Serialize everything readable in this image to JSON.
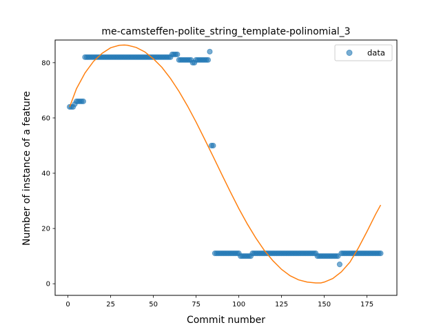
{
  "chart_data": {
    "type": "scatter",
    "title": "me-camsteffen-polite_string_template-polinomial_3",
    "xlabel": "Commit number",
    "ylabel": "Number of instance of a feature",
    "xlim": [
      -7.5,
      192.5
    ],
    "ylim": [
      -4.2,
      88.2
    ],
    "x_ticks": [
      0,
      25,
      50,
      75,
      100,
      125,
      150,
      175
    ],
    "y_ticks": [
      0,
      20,
      40,
      60,
      80
    ],
    "grid": false,
    "legend": {
      "position": "top-right",
      "entries": [
        "data"
      ]
    },
    "series": [
      {
        "name": "data",
        "kind": "scatter",
        "color": "#1f77b4",
        "points": [
          [
            1,
            64
          ],
          [
            2,
            64
          ],
          [
            3,
            64
          ],
          [
            4,
            65
          ],
          [
            5,
            66
          ],
          [
            6,
            66
          ],
          [
            7,
            66
          ],
          [
            8,
            66
          ],
          [
            9,
            66
          ],
          [
            10,
            82
          ],
          [
            11,
            82
          ],
          [
            12,
            82
          ],
          [
            13,
            82
          ],
          [
            14,
            82
          ],
          [
            15,
            82
          ],
          [
            16,
            82
          ],
          [
            17,
            82
          ],
          [
            18,
            82
          ],
          [
            19,
            82
          ],
          [
            20,
            82
          ],
          [
            21,
            82
          ],
          [
            22,
            82
          ],
          [
            23,
            82
          ],
          [
            24,
            82
          ],
          [
            25,
            82
          ],
          [
            26,
            82
          ],
          [
            27,
            82
          ],
          [
            28,
            82
          ],
          [
            29,
            82
          ],
          [
            30,
            82
          ],
          [
            31,
            82
          ],
          [
            32,
            82
          ],
          [
            33,
            82
          ],
          [
            34,
            82
          ],
          [
            35,
            82
          ],
          [
            36,
            82
          ],
          [
            37,
            82
          ],
          [
            38,
            82
          ],
          [
            39,
            82
          ],
          [
            40,
            82
          ],
          [
            41,
            82
          ],
          [
            42,
            82
          ],
          [
            43,
            82
          ],
          [
            44,
            82
          ],
          [
            45,
            82
          ],
          [
            46,
            82
          ],
          [
            47,
            82
          ],
          [
            48,
            82
          ],
          [
            49,
            82
          ],
          [
            50,
            82
          ],
          [
            51,
            82
          ],
          [
            52,
            82
          ],
          [
            53,
            82
          ],
          [
            54,
            82
          ],
          [
            55,
            82
          ],
          [
            56,
            82
          ],
          [
            57,
            82
          ],
          [
            58,
            82
          ],
          [
            59,
            82
          ],
          [
            60,
            82
          ],
          [
            61,
            83
          ],
          [
            62,
            83
          ],
          [
            63,
            83
          ],
          [
            64,
            83
          ],
          [
            65,
            81
          ],
          [
            66,
            81
          ],
          [
            67,
            81
          ],
          [
            68,
            81
          ],
          [
            69,
            81
          ],
          [
            70,
            81
          ],
          [
            71,
            81
          ],
          [
            72,
            81
          ],
          [
            73,
            80
          ],
          [
            74,
            80
          ],
          [
            75,
            81
          ],
          [
            76,
            81
          ],
          [
            77,
            81
          ],
          [
            78,
            81
          ],
          [
            79,
            81
          ],
          [
            80,
            81
          ],
          [
            81,
            81
          ],
          [
            82,
            81
          ],
          [
            83,
            84
          ],
          [
            84,
            50
          ],
          [
            85,
            50
          ],
          [
            86,
            11
          ],
          [
            87,
            11
          ],
          [
            88,
            11
          ],
          [
            89,
            11
          ],
          [
            90,
            11
          ],
          [
            91,
            11
          ],
          [
            92,
            11
          ],
          [
            93,
            11
          ],
          [
            94,
            11
          ],
          [
            95,
            11
          ],
          [
            96,
            11
          ],
          [
            97,
            11
          ],
          [
            98,
            11
          ],
          [
            99,
            11
          ],
          [
            100,
            11
          ],
          [
            101,
            10
          ],
          [
            102,
            10
          ],
          [
            103,
            10
          ],
          [
            104,
            10
          ],
          [
            105,
            10
          ],
          [
            106,
            10
          ],
          [
            107,
            10
          ],
          [
            108,
            11
          ],
          [
            109,
            11
          ],
          [
            110,
            11
          ],
          [
            111,
            11
          ],
          [
            112,
            11
          ],
          [
            113,
            11
          ],
          [
            114,
            11
          ],
          [
            115,
            11
          ],
          [
            116,
            11
          ],
          [
            117,
            11
          ],
          [
            118,
            11
          ],
          [
            119,
            11
          ],
          [
            120,
            11
          ],
          [
            121,
            11
          ],
          [
            122,
            11
          ],
          [
            123,
            11
          ],
          [
            124,
            11
          ],
          [
            125,
            11
          ],
          [
            126,
            11
          ],
          [
            127,
            11
          ],
          [
            128,
            11
          ],
          [
            129,
            11
          ],
          [
            130,
            11
          ],
          [
            131,
            11
          ],
          [
            132,
            11
          ],
          [
            133,
            11
          ],
          [
            134,
            11
          ],
          [
            135,
            11
          ],
          [
            136,
            11
          ],
          [
            137,
            11
          ],
          [
            138,
            11
          ],
          [
            139,
            11
          ],
          [
            140,
            11
          ],
          [
            141,
            11
          ],
          [
            142,
            11
          ],
          [
            143,
            11
          ],
          [
            144,
            11
          ],
          [
            145,
            11
          ],
          [
            146,
            10
          ],
          [
            147,
            10
          ],
          [
            148,
            10
          ],
          [
            149,
            10
          ],
          [
            150,
            10
          ],
          [
            151,
            10
          ],
          [
            152,
            10
          ],
          [
            153,
            10
          ],
          [
            154,
            10
          ],
          [
            155,
            10
          ],
          [
            156,
            10
          ],
          [
            157,
            10
          ],
          [
            158,
            10
          ],
          [
            159,
            7
          ],
          [
            160,
            11
          ],
          [
            161,
            11
          ],
          [
            162,
            11
          ],
          [
            163,
            11
          ],
          [
            164,
            11
          ],
          [
            165,
            11
          ],
          [
            166,
            11
          ],
          [
            167,
            11
          ],
          [
            168,
            11
          ],
          [
            169,
            11
          ],
          [
            170,
            11
          ],
          [
            171,
            11
          ],
          [
            172,
            11
          ],
          [
            173,
            11
          ],
          [
            174,
            11
          ],
          [
            175,
            11
          ],
          [
            176,
            11
          ],
          [
            177,
            11
          ],
          [
            178,
            11
          ],
          [
            179,
            11
          ],
          [
            180,
            11
          ],
          [
            181,
            11
          ],
          [
            182,
            11
          ],
          [
            183,
            11
          ]
        ]
      },
      {
        "name": "",
        "kind": "line",
        "color": "#ff7f0e",
        "points": [
          [
            1,
            64
          ],
          [
            5,
            70.6
          ],
          [
            10,
            76.3
          ],
          [
            15,
            80.5
          ],
          [
            20,
            83.4
          ],
          [
            25,
            85.4
          ],
          [
            30,
            86.3
          ],
          [
            33,
            86.4
          ],
          [
            35,
            86.3
          ],
          [
            40,
            85.5
          ],
          [
            45,
            83.9
          ],
          [
            50,
            81.4
          ],
          [
            55,
            78.3
          ],
          [
            60,
            74.3
          ],
          [
            65,
            69.6
          ],
          [
            70,
            64.3
          ],
          [
            75,
            58.5
          ],
          [
            80,
            52.3
          ],
          [
            85,
            46.0
          ],
          [
            90,
            39.6
          ],
          [
            95,
            33.3
          ],
          [
            100,
            27.2
          ],
          [
            105,
            21.6
          ],
          [
            110,
            16.5
          ],
          [
            115,
            12.0
          ],
          [
            120,
            8.3
          ],
          [
            125,
            5.2
          ],
          [
            130,
            2.9
          ],
          [
            135,
            1.4
          ],
          [
            140,
            0.6
          ],
          [
            145,
            0.3
          ],
          [
            148,
            0.3
          ],
          [
            150,
            0.6
          ],
          [
            155,
            1.9
          ],
          [
            160,
            4.3
          ],
          [
            165,
            7.8
          ],
          [
            170,
            13.0
          ],
          [
            175,
            18.9
          ],
          [
            180,
            25.1
          ],
          [
            183,
            28.5
          ]
        ]
      }
    ]
  }
}
